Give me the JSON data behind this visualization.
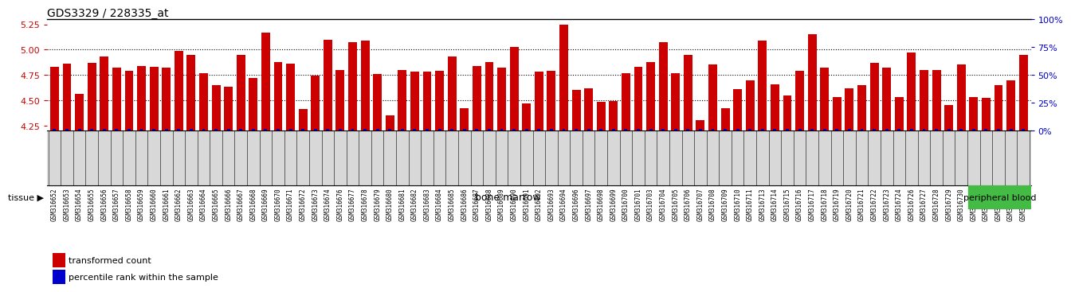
{
  "title": "GDS3329 / 228335_at",
  "samples": [
    "GSM316652",
    "GSM316653",
    "GSM316654",
    "GSM316655",
    "GSM316656",
    "GSM316657",
    "GSM316658",
    "GSM316659",
    "GSM316660",
    "GSM316661",
    "GSM316662",
    "GSM316663",
    "GSM316664",
    "GSM316665",
    "GSM316666",
    "GSM316667",
    "GSM316668",
    "GSM316669",
    "GSM316670",
    "GSM316671",
    "GSM316672",
    "GSM316673",
    "GSM316674",
    "GSM316676",
    "GSM316677",
    "GSM316678",
    "GSM316679",
    "GSM316680",
    "GSM316681",
    "GSM316682",
    "GSM316683",
    "GSM316684",
    "GSM316685",
    "GSM316686",
    "GSM316687",
    "GSM316688",
    "GSM316689",
    "GSM316690",
    "GSM316691",
    "GSM316692",
    "GSM316693",
    "GSM316694",
    "GSM316696",
    "GSM316697",
    "GSM316698",
    "GSM316699",
    "GSM316700",
    "GSM316701",
    "GSM316703",
    "GSM316704",
    "GSM316705",
    "GSM316706",
    "GSM316707",
    "GSM316708",
    "GSM316709",
    "GSM316710",
    "GSM316711",
    "GSM316713",
    "GSM316714",
    "GSM316715",
    "GSM316716",
    "GSM316717",
    "GSM316718",
    "GSM316719",
    "GSM316720",
    "GSM316721",
    "GSM316722",
    "GSM316723",
    "GSM316724",
    "GSM316726",
    "GSM316727",
    "GSM316728",
    "GSM316729",
    "GSM316730",
    "GSM316675",
    "GSM316695",
    "GSM316702",
    "GSM316712",
    "GSM316725"
  ],
  "values": [
    4.83,
    4.86,
    4.56,
    4.87,
    4.93,
    4.82,
    4.79,
    4.84,
    4.83,
    4.82,
    4.99,
    4.95,
    4.77,
    4.65,
    4.63,
    4.95,
    4.72,
    5.17,
    4.88,
    4.86,
    4.41,
    4.74,
    5.1,
    4.8,
    5.07,
    5.09,
    4.76,
    4.35,
    4.8,
    4.78,
    4.78,
    4.79,
    4.93,
    4.42,
    4.84,
    4.88,
    4.82,
    5.03,
    4.47,
    4.78,
    4.79,
    5.25,
    4.6,
    4.62,
    4.48,
    4.49,
    4.77,
    4.83,
    4.88,
    5.07,
    4.77,
    4.95,
    4.3,
    4.85,
    4.42,
    4.61,
    4.7,
    5.09,
    4.66,
    4.55,
    4.79,
    5.15,
    4.82,
    4.53,
    4.62,
    4.65,
    4.87,
    4.82,
    4.53,
    4.97,
    4.8,
    4.8,
    4.45,
    4.85,
    4.53,
    4.52,
    4.65,
    4.7,
    4.95
  ],
  "bone_marrow_count": 74,
  "ylim_left": [
    4.2,
    5.3
  ],
  "yticks_left": [
    4.25,
    4.5,
    4.75,
    5.0,
    5.25
  ],
  "yticks_right": [
    0,
    25,
    50,
    75,
    100
  ],
  "hlines": [
    4.5,
    4.75,
    5.0
  ],
  "bar_color": "#cc0000",
  "percentile_color": "#0000cc",
  "bone_marrow_color": "#ccffcc",
  "peripheral_blood_color": "#44bb44",
  "xtick_bg_color": "#d8d8d8",
  "title_fontsize": 10,
  "bar_fontsize": 5.5,
  "legend_fontsize": 8,
  "tissue_label": "tissue ▶",
  "bone_marrow_label": "bone marrow",
  "peripheral_blood_label": "peripheral blood",
  "legend_red_label": "transformed count",
  "legend_blue_label": "percentile rank within the sample"
}
